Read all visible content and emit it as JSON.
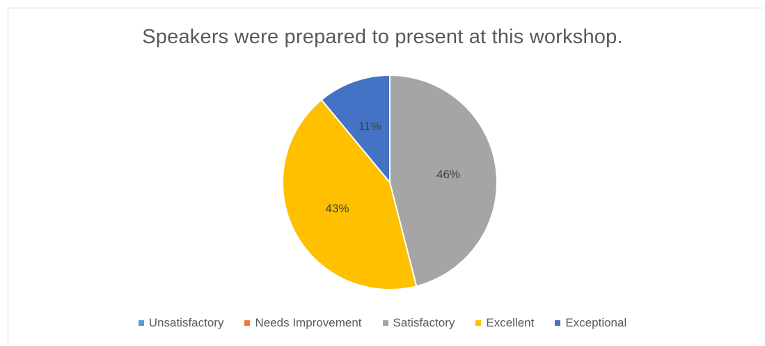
{
  "chart_data": {
    "type": "pie",
    "title": "Speakers were prepared to present at this workshop.",
    "categories": [
      "Unsatisfactory",
      "Needs Improvement",
      "Satisfactory",
      "Excellent",
      "Exceptional"
    ],
    "values": [
      0,
      0,
      46,
      43,
      11
    ],
    "data_labels": [
      "",
      "",
      "46%",
      "43%",
      "11%"
    ],
    "colors": [
      "#5b9bd5",
      "#ed7d31",
      "#a5a5a5",
      "#ffc000",
      "#4472c4"
    ],
    "legend": "bottom"
  }
}
